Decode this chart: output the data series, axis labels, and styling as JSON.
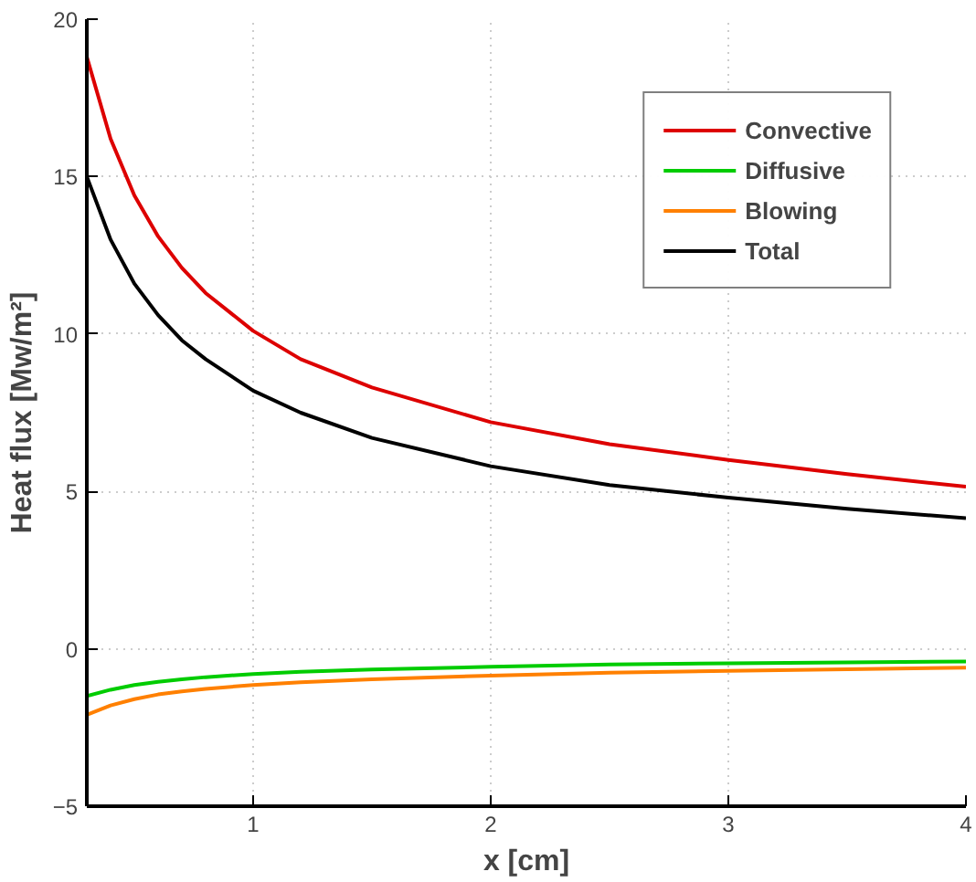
{
  "chart_data": {
    "type": "line",
    "xlabel": "x [cm]",
    "ylabel": "Heat flux [Mw/m²]",
    "x": [
      0.3,
      0.4,
      0.5,
      0.6,
      0.7,
      0.8,
      1,
      1.2,
      1.5,
      2,
      2.5,
      3,
      3.5,
      4
    ],
    "series": [
      {
        "name": "Convective",
        "color": "#dd0000",
        "values": [
          18.8,
          16.2,
          14.4,
          13.1,
          12.1,
          11.3,
          10.1,
          9.2,
          8.3,
          7.2,
          6.5,
          6.0,
          5.55,
          5.15
        ]
      },
      {
        "name": "Diffusive",
        "color": "#00cc00",
        "values": [
          -1.5,
          -1.3,
          -1.15,
          -1.05,
          -0.97,
          -0.9,
          -0.8,
          -0.73,
          -0.66,
          -0.57,
          -0.5,
          -0.46,
          -0.43,
          -0.4
        ]
      },
      {
        "name": "Blowing",
        "color": "#ff8000",
        "values": [
          -2.1,
          -1.8,
          -1.6,
          -1.45,
          -1.35,
          -1.27,
          -1.15,
          -1.06,
          -0.97,
          -0.85,
          -0.76,
          -0.7,
          -0.65,
          -0.6
        ]
      },
      {
        "name": "Total",
        "color": "#000000",
        "values": [
          15.0,
          13.0,
          11.6,
          10.6,
          9.8,
          9.2,
          8.2,
          7.5,
          6.7,
          5.8,
          5.2,
          4.8,
          4.45,
          4.15
        ]
      }
    ],
    "xlim": [
      0.3,
      4
    ],
    "ylim": [
      -5,
      20
    ],
    "xticks": [
      1,
      2,
      3,
      4
    ],
    "yticks": [
      -5,
      0,
      5,
      10,
      15,
      20
    ],
    "grid": true,
    "legend": "top right",
    "marker": "none",
    "line_style": "solid"
  }
}
